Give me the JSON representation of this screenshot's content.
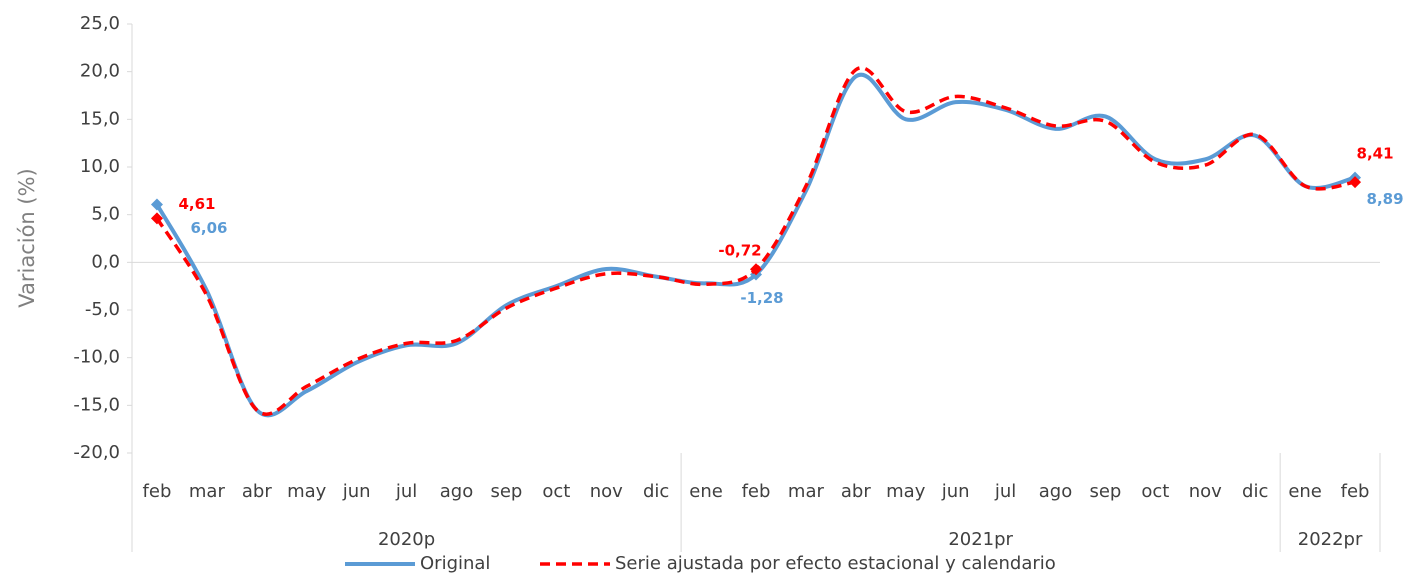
{
  "chart_data": {
    "type": "line",
    "y_label": "Variación (%)",
    "categories": [
      "feb",
      "mar",
      "abr",
      "may",
      "jun",
      "jul",
      "ago",
      "sep",
      "oct",
      "nov",
      "dic",
      "ene",
      "feb",
      "mar",
      "abr",
      "may",
      "jun",
      "jul",
      "ago",
      "sep",
      "oct",
      "nov",
      "dic",
      "ene",
      "feb"
    ],
    "groups": [
      {
        "label": "2020p",
        "count": 11
      },
      {
        "label": "2021pr",
        "count": 12
      },
      {
        "label": "2022pr",
        "count": 2
      }
    ],
    "series": [
      {
        "name": "Original",
        "color": "#5b9bd5",
        "dash": false,
        "values": [
          6.06,
          -3.0,
          -15.5,
          -13.5,
          -10.5,
          -8.7,
          -8.5,
          -4.5,
          -2.5,
          -0.7,
          -1.5,
          -2.2,
          -1.28,
          7.5,
          19.5,
          15.0,
          16.8,
          16.0,
          14.0,
          15.3,
          10.8,
          10.8,
          13.3,
          8.0,
          8.89
        ],
        "value_labels": [
          "6,06",
          null,
          null,
          null,
          null,
          null,
          null,
          null,
          null,
          null,
          null,
          null,
          "-1,28",
          null,
          null,
          null,
          null,
          null,
          null,
          null,
          null,
          null,
          null,
          null,
          "8,89"
        ]
      },
      {
        "name": "Serie ajustada por efecto estacional y calendario",
        "color": "#ff0000",
        "dash": true,
        "values": [
          4.61,
          -3.5,
          -15.5,
          -13.0,
          -10.2,
          -8.5,
          -8.2,
          -4.8,
          -2.7,
          -1.2,
          -1.5,
          -2.3,
          -0.72,
          8.0,
          20.2,
          15.8,
          17.4,
          16.2,
          14.3,
          14.8,
          10.5,
          10.2,
          13.4,
          8.0,
          8.41
        ],
        "value_labels": [
          "4,61",
          null,
          null,
          null,
          null,
          null,
          null,
          null,
          null,
          null,
          null,
          null,
          "-0,72",
          null,
          null,
          null,
          null,
          null,
          null,
          null,
          null,
          null,
          null,
          null,
          "8,41"
        ]
      }
    ],
    "ylim": [
      -20,
      25
    ],
    "yticks": [
      {
        "value": -20,
        "label": "-20,0"
      },
      {
        "value": -15,
        "label": "-15,0"
      },
      {
        "value": -10,
        "label": "-10,0"
      },
      {
        "value": -5,
        "label": "-5,0"
      },
      {
        "value": 0,
        "label": "0,0"
      },
      {
        "value": 5,
        "label": "5,0"
      },
      {
        "value": 10,
        "label": "10,0"
      },
      {
        "value": 15,
        "label": "15,0"
      },
      {
        "value": 20,
        "label": "20,0"
      },
      {
        "value": 25,
        "label": "25,0"
      }
    ],
    "grid": false,
    "legend": "bottom"
  }
}
